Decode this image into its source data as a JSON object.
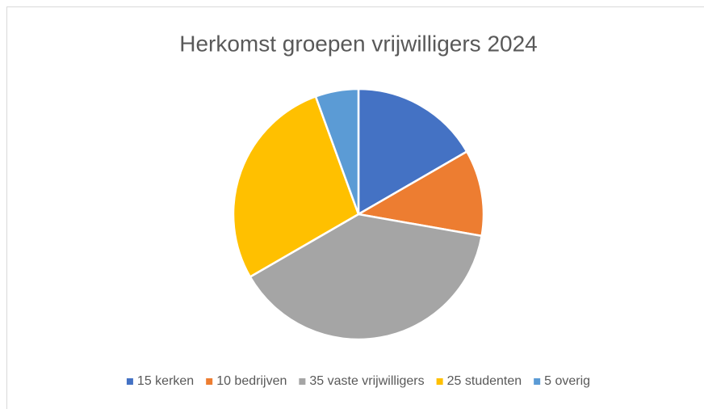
{
  "chart_data": {
    "type": "pie",
    "title": "Herkomst groepen vrijwilligers 2024",
    "categories": [
      "15 kerken",
      "10 bedrijven",
      "35 vaste vrijwilligers",
      "25 studenten",
      "5 overig"
    ],
    "values": [
      15,
      10,
      35,
      25,
      5
    ],
    "colors": [
      "#4472c4",
      "#ed7d31",
      "#a5a5a5",
      "#ffc000",
      "#5b9bd5"
    ],
    "legend": "bottom"
  }
}
